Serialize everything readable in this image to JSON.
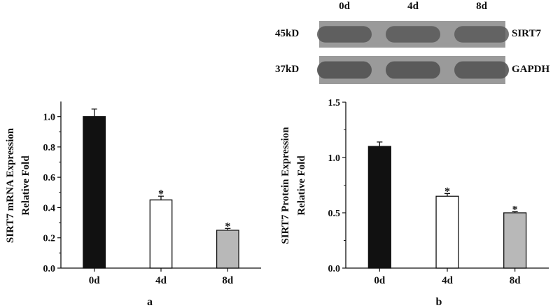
{
  "blot": {
    "lanes": [
      "0d",
      "4d",
      "8d"
    ],
    "rows": [
      {
        "size": "45kD",
        "protein": "SIRT7",
        "intensity": [
          0.85,
          0.82,
          0.8
        ]
      },
      {
        "size": "37kD",
        "protein": "GAPDH",
        "intensity": [
          0.95,
          0.92,
          0.9
        ]
      }
    ]
  },
  "colors": {
    "bar_0d": "#111111",
    "bar_4d": "#ffffff",
    "bar_8d": "#b8b8b8",
    "band": "#555555",
    "blot_bg": "#9a9a9a"
  },
  "chart_data": [
    {
      "type": "bar",
      "panel_label": "a",
      "ylabel_line1": "SIRT7 mRNA Expression",
      "ylabel_line2": "Relative Fold",
      "categories": [
        "0d",
        "4d",
        "8d"
      ],
      "values": [
        1.0,
        0.45,
        0.25
      ],
      "errors": [
        0.05,
        0.025,
        0.012
      ],
      "significance": [
        "",
        "*",
        "*"
      ],
      "ylim": [
        0,
        1.1
      ],
      "yticks": [
        "0.0",
        "0.2",
        "0.4",
        "0.6",
        "0.8",
        "1.0"
      ],
      "grid": false
    },
    {
      "type": "bar",
      "panel_label": "b",
      "ylabel_line1": "SIRT7 Protein Expression",
      "ylabel_line2": "Relative Fold",
      "categories": [
        "0d",
        "4d",
        "8d"
      ],
      "values": [
        1.1,
        0.65,
        0.5
      ],
      "errors": [
        0.04,
        0.025,
        0.01
      ],
      "significance": [
        "",
        "*",
        "*"
      ],
      "ylim": [
        0,
        1.5
      ],
      "yticks": [
        "0.0",
        "0.5",
        "1.0",
        "1.5"
      ],
      "grid": false
    }
  ]
}
